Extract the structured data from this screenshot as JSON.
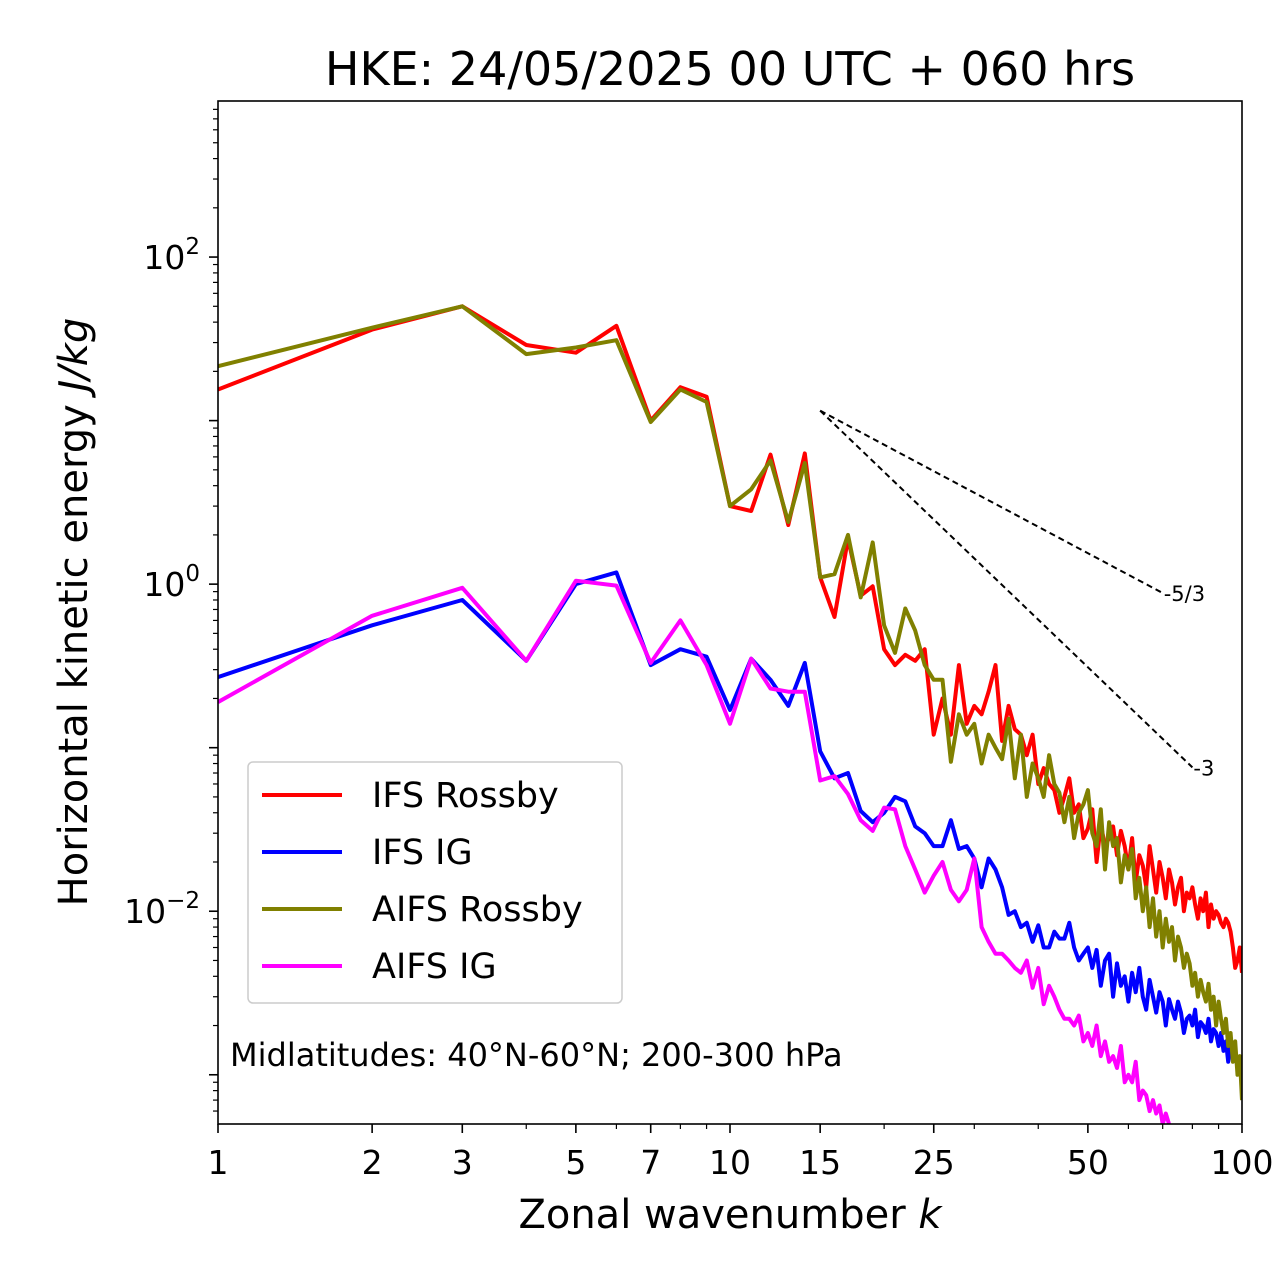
{
  "chart_data": {
    "type": "line",
    "title": "HKE: 24/05/2025 00 UTC + 060 hrs",
    "xlabel": "Zonal wavenumber",
    "xlabel_symbol": "k",
    "ylabel": "Horizontal kinetic energy",
    "ylabel_unit": "J/kg",
    "xscale": "log",
    "yscale": "log",
    "xlim": [
      1,
      100
    ],
    "ylim": [
      0.0005,
      900
    ],
    "x_ticks": [
      1,
      2,
      3,
      5,
      7,
      10,
      15,
      25,
      50,
      100
    ],
    "x_tick_labels": [
      "1",
      "2",
      "3",
      "5",
      "7",
      "10",
      "15",
      "25",
      "50",
      "100"
    ],
    "y_ticks": [
      0.01,
      1,
      100
    ],
    "y_tick_base": "10",
    "y_tick_exponents": [
      "−2",
      "0",
      "2"
    ],
    "annotation": "Midlatitudes: 40°N-60°N; 200-300 hPa",
    "legend_position": "lower-left",
    "reference_lines": [
      {
        "label": "-5/3",
        "slope": -1.6667,
        "x0": 15,
        "y0": 11.5,
        "x1": 70
      },
      {
        "label": "-3",
        "slope": -3,
        "x0": 15,
        "y0": 11.5,
        "x1": 80
      }
    ],
    "series": [
      {
        "name": "IFS Rossby",
        "color": "#ff0000",
        "x": [
          1,
          2,
          3,
          4,
          5,
          6,
          7,
          8,
          9,
          10,
          11,
          12,
          13,
          14,
          15,
          16,
          17,
          18,
          19,
          20,
          21,
          22,
          23,
          24,
          25,
          26,
          27,
          28,
          29,
          30,
          31,
          32,
          33,
          34,
          35,
          36,
          37,
          38,
          39,
          40,
          41,
          42,
          43,
          44,
          45,
          46,
          47,
          48,
          49,
          50,
          51,
          52,
          53,
          54,
          55,
          56,
          57,
          58,
          59,
          60,
          61,
          62,
          63,
          64,
          65,
          66,
          67,
          68,
          69,
          70,
          71,
          72,
          73,
          74,
          75,
          76,
          77,
          78,
          79,
          80,
          81,
          82,
          83,
          84,
          85,
          86,
          87,
          88,
          89,
          90,
          91,
          92,
          93,
          94,
          95,
          96,
          97,
          98,
          99,
          100
        ],
        "y": [
          15.5,
          36,
          50,
          29,
          26,
          38,
          10,
          16,
          14,
          3.0,
          2.8,
          6.2,
          2.3,
          6.3,
          1.1,
          0.63,
          1.9,
          0.85,
          0.97,
          0.4,
          0.32,
          0.37,
          0.34,
          0.4,
          0.12,
          0.2,
          0.12,
          0.32,
          0.14,
          0.18,
          0.16,
          0.22,
          0.32,
          0.11,
          0.18,
          0.13,
          0.12,
          0.09,
          0.12,
          0.06,
          0.075,
          0.06,
          0.055,
          0.04,
          0.05,
          0.065,
          0.04,
          0.045,
          0.028,
          0.032,
          0.042,
          0.02,
          0.034,
          0.025,
          0.028,
          0.033,
          0.022,
          0.031,
          0.025,
          0.018,
          0.028,
          0.015,
          0.022,
          0.019,
          0.014,
          0.025,
          0.018,
          0.013,
          0.02,
          0.016,
          0.012,
          0.018,
          0.015,
          0.011,
          0.014,
          0.016,
          0.01,
          0.013,
          0.012,
          0.014,
          0.011,
          0.009,
          0.012,
          0.01,
          0.013,
          0.008,
          0.011,
          0.009,
          0.01,
          0.0095,
          0.0085,
          0.008,
          0.009,
          0.0085,
          0.0075,
          0.006,
          0.0045,
          0.005,
          0.006,
          0.0042
        ]
      },
      {
        "name": "IFS IG",
        "color": "#0000ff",
        "x": [
          1,
          2,
          3,
          4,
          5,
          6,
          7,
          8,
          9,
          10,
          11,
          12,
          13,
          14,
          15,
          16,
          17,
          18,
          19,
          20,
          21,
          22,
          23,
          24,
          25,
          26,
          27,
          28,
          29,
          30,
          31,
          32,
          33,
          34,
          35,
          36,
          37,
          38,
          39,
          40,
          41,
          42,
          43,
          44,
          45,
          46,
          47,
          48,
          49,
          50,
          51,
          52,
          53,
          54,
          55,
          56,
          57,
          58,
          59,
          60,
          61,
          62,
          63,
          64,
          65,
          66,
          67,
          68,
          69,
          70,
          71,
          72,
          73,
          74,
          75,
          76,
          77,
          78,
          79,
          80,
          81,
          82,
          83,
          84,
          85,
          86,
          87,
          88,
          89,
          90,
          91,
          92,
          93,
          94,
          95,
          96,
          97,
          98,
          99,
          100
        ],
        "y": [
          0.27,
          0.56,
          0.8,
          0.34,
          1.0,
          1.18,
          0.32,
          0.4,
          0.36,
          0.17,
          0.35,
          0.26,
          0.18,
          0.33,
          0.095,
          0.065,
          0.07,
          0.041,
          0.035,
          0.04,
          0.05,
          0.047,
          0.033,
          0.03,
          0.025,
          0.025,
          0.036,
          0.024,
          0.025,
          0.021,
          0.014,
          0.021,
          0.018,
          0.014,
          0.0095,
          0.01,
          0.008,
          0.0085,
          0.0065,
          0.0082,
          0.006,
          0.006,
          0.0075,
          0.0068,
          0.0068,
          0.0085,
          0.006,
          0.005,
          0.0055,
          0.006,
          0.0045,
          0.0058,
          0.0035,
          0.005,
          0.0055,
          0.003,
          0.0048,
          0.0035,
          0.004,
          0.0028,
          0.0042,
          0.0032,
          0.0045,
          0.003,
          0.0025,
          0.0038,
          0.003,
          0.0024,
          0.0032,
          0.0028,
          0.002,
          0.0029,
          0.0025,
          0.0022,
          0.0028,
          0.0024,
          0.0018,
          0.0022,
          0.0023,
          0.002,
          0.0025,
          0.0017,
          0.0021,
          0.002,
          0.0018,
          0.0022,
          0.0016,
          0.0019,
          0.0018,
          0.0015,
          0.0018,
          0.0014,
          0.0016,
          0.0012,
          0.0015,
          0.0013,
          0.0014,
          0.0011,
          0.0012,
          0.0009
        ]
      },
      {
        "name": "AIFS Rossby",
        "color": "#808000",
        "x": [
          1,
          2,
          3,
          4,
          5,
          6,
          7,
          8,
          9,
          10,
          11,
          12,
          13,
          14,
          15,
          16,
          17,
          18,
          19,
          20,
          21,
          22,
          23,
          24,
          25,
          26,
          27,
          28,
          29,
          30,
          31,
          32,
          33,
          34,
          35,
          36,
          37,
          38,
          39,
          40,
          41,
          42,
          43,
          44,
          45,
          46,
          47,
          48,
          49,
          50,
          51,
          52,
          53,
          54,
          55,
          56,
          57,
          58,
          59,
          60,
          61,
          62,
          63,
          64,
          65,
          66,
          67,
          68,
          69,
          70,
          71,
          72,
          73,
          74,
          75,
          76,
          77,
          78,
          79,
          80,
          81,
          82,
          83,
          84,
          85,
          86,
          87,
          88,
          89,
          90,
          91,
          92,
          93,
          94,
          95,
          96,
          97,
          98,
          99,
          100
        ],
        "y": [
          21.5,
          37,
          50,
          25.5,
          28,
          31,
          9.8,
          15.5,
          13,
          3.0,
          3.8,
          5.7,
          2.4,
          5.5,
          1.1,
          1.15,
          2.0,
          0.83,
          1.8,
          0.56,
          0.38,
          0.71,
          0.52,
          0.32,
          0.26,
          0.26,
          0.082,
          0.16,
          0.12,
          0.14,
          0.08,
          0.12,
          0.1,
          0.085,
          0.15,
          0.065,
          0.12,
          0.05,
          0.08,
          0.065,
          0.05,
          0.09,
          0.06,
          0.053,
          0.035,
          0.05,
          0.028,
          0.04,
          0.045,
          0.055,
          0.03,
          0.025,
          0.042,
          0.018,
          0.035,
          0.025,
          0.028,
          0.015,
          0.022,
          0.018,
          0.024,
          0.012,
          0.016,
          0.01,
          0.014,
          0.008,
          0.012,
          0.007,
          0.01,
          0.006,
          0.009,
          0.0065,
          0.008,
          0.005,
          0.007,
          0.006,
          0.0045,
          0.0055,
          0.0048,
          0.0035,
          0.0042,
          0.003,
          0.0038,
          0.0032,
          0.0028,
          0.0036,
          0.0025,
          0.003,
          0.002,
          0.0028,
          0.0022,
          0.0018,
          0.0022,
          0.0015,
          0.0018,
          0.0012,
          0.0016,
          0.001,
          0.0013,
          0.0007
        ]
      },
      {
        "name": "AIFS IG",
        "color": "#ff00ff",
        "x": [
          1,
          2,
          3,
          4,
          5,
          6,
          7,
          8,
          9,
          10,
          11,
          12,
          13,
          14,
          15,
          16,
          17,
          18,
          19,
          20,
          21,
          22,
          23,
          24,
          25,
          26,
          27,
          28,
          29,
          30,
          31,
          32,
          33,
          34,
          35,
          36,
          37,
          38,
          39,
          40,
          41,
          42,
          43,
          44,
          45,
          46,
          47,
          48,
          49,
          50,
          51,
          52,
          53,
          54,
          55,
          56,
          57,
          58,
          59,
          60,
          61,
          62,
          63,
          64,
          65,
          66,
          67,
          68,
          69,
          70,
          71,
          72
        ],
        "y": [
          0.19,
          0.64,
          0.95,
          0.34,
          1.05,
          0.98,
          0.33,
          0.6,
          0.32,
          0.14,
          0.35,
          0.23,
          0.22,
          0.22,
          0.063,
          0.067,
          0.052,
          0.036,
          0.031,
          0.043,
          0.042,
          0.025,
          0.018,
          0.013,
          0.0165,
          0.02,
          0.0135,
          0.0115,
          0.0135,
          0.021,
          0.008,
          0.0065,
          0.0055,
          0.0055,
          0.005,
          0.0045,
          0.0042,
          0.005,
          0.0034,
          0.0045,
          0.0027,
          0.0035,
          0.003,
          0.0025,
          0.0022,
          0.0022,
          0.002,
          0.0023,
          0.0016,
          0.0018,
          0.0015,
          0.002,
          0.0013,
          0.0016,
          0.0012,
          0.0013,
          0.0011,
          0.0015,
          0.0009,
          0.001,
          0.0009,
          0.0012,
          0.0007,
          0.0008,
          0.00075,
          0.0006,
          0.0007,
          0.00058,
          0.00065,
          0.0005,
          0.00058,
          0.0005
        ]
      }
    ]
  }
}
